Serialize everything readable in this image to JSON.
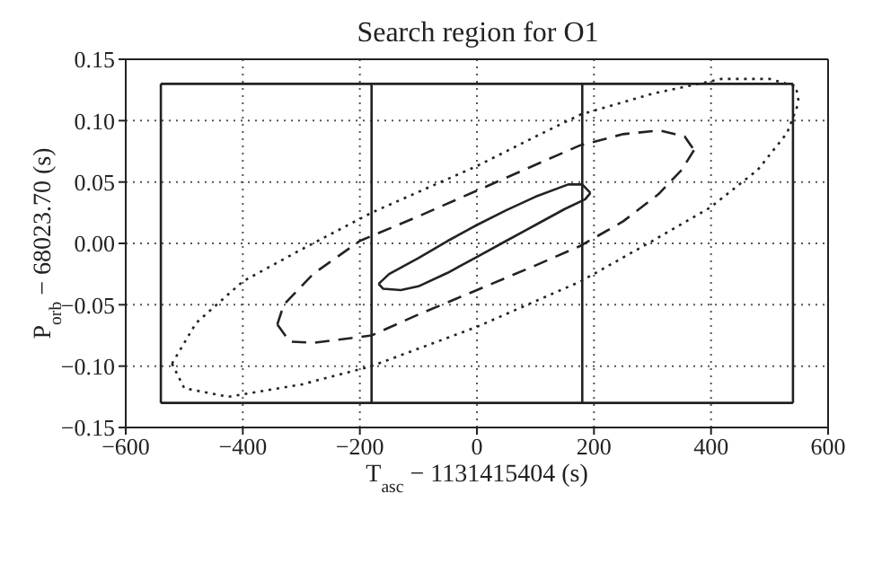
{
  "chart_data": {
    "type": "line",
    "title": "Search region for O1",
    "xlabel": "T$_{asc}$ − 1131415404 (s)",
    "ylabel": "P$_{orb}$ − 68023.70 (s)",
    "xlim": [
      -600,
      600
    ],
    "xticks": [
      {
        "value": -600,
        "label": "−600"
      },
      {
        "value": -400,
        "label": "−400"
      },
      {
        "value": -200,
        "label": "−200"
      },
      {
        "value": 0,
        "label": "0"
      },
      {
        "value": 200,
        "label": "200"
      },
      {
        "value": 400,
        "label": "400"
      },
      {
        "value": 600,
        "label": "600"
      }
    ],
    "ylim": [
      -0.15,
      0.15
    ],
    "yticks": [
      {
        "value": -0.15,
        "label": "−0.15"
      },
      {
        "value": -0.1,
        "label": "−0.10"
      },
      {
        "value": -0.05,
        "label": "−0.05"
      },
      {
        "value": 0,
        "label": "0.00"
      },
      {
        "value": 0.05,
        "label": "0.05"
      },
      {
        "value": 0.1,
        "label": "0.10"
      },
      {
        "value": 0.15,
        "label": "0.15"
      }
    ],
    "grid": true,
    "marker": "none",
    "series": [
      {
        "color": "#222222",
        "line_style": "solid",
        "x": [
          -168,
          -150,
          -100,
          -50,
          0,
          50,
          100,
          156,
          180,
          194
        ],
        "values": [
          -0.033,
          -0.025,
          -0.012,
          0.002,
          0.015,
          0.027,
          0.038,
          0.048,
          0.048,
          0.041
        ]
      },
      {
        "color": "#222222",
        "line_style": "solid",
        "x": [
          -168,
          -160,
          -130,
          -100,
          -50,
          0,
          50,
          100,
          150,
          185,
          194
        ],
        "values": [
          -0.033,
          -0.037,
          -0.038,
          -0.035,
          -0.024,
          -0.011,
          0.002,
          0.015,
          0.028,
          0.036,
          0.041
        ]
      },
      {
        "color": "#222222",
        "line_style": "dashed",
        "x": [
          -341,
          -330,
          -280,
          -200,
          -100,
          0,
          100,
          177,
          250,
          312,
          355,
          371
        ],
        "values": [
          -0.066,
          -0.05,
          -0.025,
          0.002,
          0.022,
          0.043,
          0.064,
          0.08,
          0.089,
          0.092,
          0.087,
          0.076
        ]
      },
      {
        "color": "#222222",
        "line_style": "dashed",
        "x": [
          -341,
          -320,
          -279,
          -180,
          -100,
          0,
          100,
          177,
          250,
          310,
          350,
          371
        ],
        "values": [
          -0.066,
          -0.08,
          -0.081,
          -0.075,
          -0.058,
          -0.038,
          -0.018,
          -0.002,
          0.018,
          0.04,
          0.06,
          0.076
        ]
      },
      {
        "color": "#222222",
        "line_style": "dotted",
        "x": [
          -521,
          -480,
          -400,
          -300,
          -180,
          0,
          100,
          177,
          300,
          418,
          500,
          545,
          550
        ],
        "values": [
          -0.098,
          -0.065,
          -0.031,
          -0.005,
          0.025,
          0.063,
          0.087,
          0.105,
          0.122,
          0.134,
          0.134,
          0.128,
          0.115
        ]
      },
      {
        "color": "#222222",
        "line_style": "dotted",
        "x": [
          -521,
          -500,
          -425,
          -300,
          -180,
          0,
          177,
          300,
          398,
          480,
          530,
          550
        ],
        "values": [
          -0.098,
          -0.118,
          -0.125,
          -0.115,
          -0.1,
          -0.068,
          -0.031,
          0.002,
          0.029,
          0.06,
          0.09,
          0.115
        ]
      },
      {
        "color": "#222222",
        "line_style": "solid",
        "x": [
          -540,
          540
        ],
        "values": [
          0.13,
          0.13
        ]
      },
      {
        "color": "#222222",
        "line_style": "solid",
        "x": [
          -540,
          540
        ],
        "values": [
          -0.13,
          -0.13
        ]
      },
      {
        "color": "#222222",
        "line_style": "solid",
        "x": [
          -540,
          -540
        ],
        "values": [
          -0.13,
          0.13
        ]
      },
      {
        "color": "#222222",
        "line_style": "solid",
        "x": [
          540,
          540
        ],
        "values": [
          -0.13,
          0.13
        ]
      },
      {
        "color": "#222222",
        "line_style": "solid",
        "x": [
          -180,
          -180
        ],
        "values": [
          -0.13,
          0.13
        ]
      },
      {
        "color": "#222222",
        "line_style": "solid",
        "x": [
          180,
          180
        ],
        "values": [
          -0.13,
          0.13
        ]
      }
    ]
  }
}
